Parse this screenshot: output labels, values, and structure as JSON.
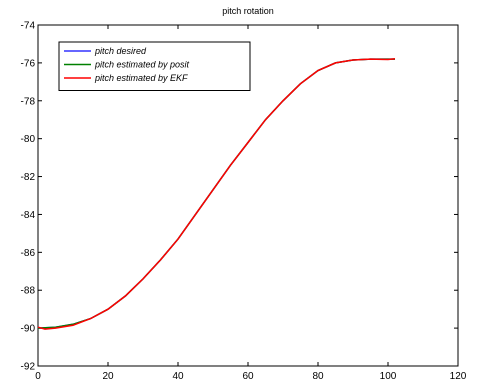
{
  "chart_data": {
    "type": "line",
    "title": "pitch rotation",
    "xlabel": "",
    "ylabel": "",
    "xlim": [
      0,
      120
    ],
    "ylim": [
      -92,
      -74
    ],
    "xticks": [
      0,
      20,
      40,
      60,
      80,
      100,
      120
    ],
    "yticks": [
      -74,
      -76,
      -78,
      -80,
      -82,
      -84,
      -86,
      -88,
      -90,
      -92
    ],
    "grid": false,
    "legend": "top-left",
    "series": [
      {
        "name": "pitch desired",
        "color": "#3333ff",
        "x": [
          0,
          5,
          10,
          15,
          20,
          25,
          30,
          35,
          40,
          45,
          50,
          55,
          60,
          65,
          70,
          75,
          80,
          85,
          90,
          95,
          100,
          102
        ],
        "y": [
          -90.0,
          -89.95,
          -89.8,
          -89.5,
          -89.0,
          -88.3,
          -87.4,
          -86.4,
          -85.3,
          -84.0,
          -82.7,
          -81.4,
          -80.2,
          -79.0,
          -78.0,
          -77.1,
          -76.4,
          -76.0,
          -75.85,
          -75.8,
          -75.8,
          -75.8
        ]
      },
      {
        "name": "pitch estimated by posit",
        "color": "#008000",
        "x": [
          0,
          5,
          10,
          15,
          20,
          25,
          30,
          35,
          40,
          45,
          50,
          55,
          60,
          65,
          70,
          75,
          80,
          85,
          90,
          95,
          100,
          102
        ],
        "y": [
          -90.0,
          -89.95,
          -89.8,
          -89.5,
          -89.0,
          -88.3,
          -87.4,
          -86.4,
          -85.3,
          -84.0,
          -82.7,
          -81.4,
          -80.2,
          -79.0,
          -78.0,
          -77.1,
          -76.4,
          -76.0,
          -75.85,
          -75.8,
          -75.8,
          -75.8
        ]
      },
      {
        "name": "pitch estimated by EKF",
        "color": "#ff0000",
        "x": [
          0,
          2,
          5,
          10,
          15,
          20,
          25,
          30,
          35,
          40,
          45,
          50,
          55,
          60,
          65,
          70,
          75,
          80,
          85,
          90,
          95,
          100,
          102
        ],
        "y": [
          -89.95,
          -90.05,
          -90.0,
          -89.85,
          -89.5,
          -89.0,
          -88.3,
          -87.4,
          -86.4,
          -85.3,
          -84.0,
          -82.7,
          -81.4,
          -80.2,
          -79.0,
          -78.0,
          -77.1,
          -76.4,
          -76.0,
          -75.85,
          -75.8,
          -75.82,
          -75.78
        ]
      }
    ]
  }
}
